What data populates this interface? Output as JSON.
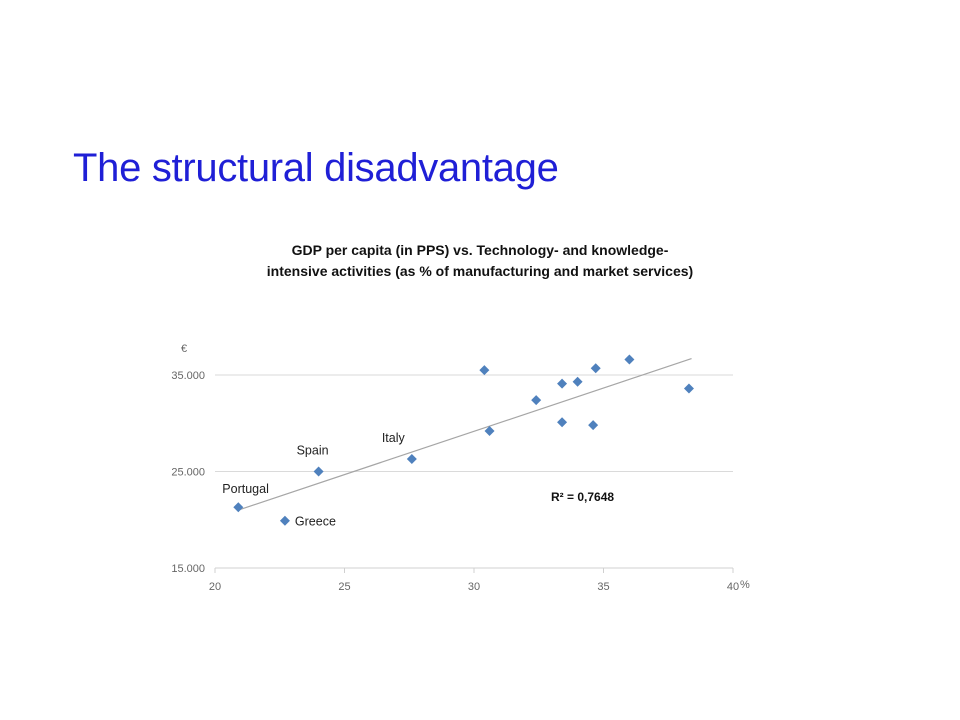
{
  "slide": {
    "title": "The structural disadvantage"
  },
  "chart_data": {
    "type": "scatter",
    "title": "GDP per capita (in PPS) vs. Technology- and knowledge-intensive activities (as % of manufacturing and market services)",
    "title_lines": [
      "GDP per capita (in PPS) vs. Technology- and knowledge-",
      "intensive activities (as % of manufacturing and market services)"
    ],
    "xlabel": "%",
    "ylabel": "€",
    "xlim": [
      20,
      40
    ],
    "ylim": [
      15000,
      37000
    ],
    "x_ticks": [
      20,
      25,
      30,
      35,
      40
    ],
    "x_tick_labels": [
      "20",
      "25",
      "30",
      "35",
      "40"
    ],
    "y_ticks": [
      15000,
      25000,
      35000
    ],
    "y_tick_labels": [
      "15.000",
      "25.000",
      "35.000"
    ],
    "grid": "horizontal",
    "marker_color": "#4f81bd",
    "trendline_color": "#a6a6a6",
    "r_squared_label": "R² = 0,7648",
    "trendline": {
      "x": [
        20.9,
        38.4
      ],
      "y": [
        21000,
        36700
      ]
    },
    "points": [
      {
        "x": 20.9,
        "y": 21300,
        "label": "Portugal"
      },
      {
        "x": 22.7,
        "y": 19900,
        "label": "Greece"
      },
      {
        "x": 24.0,
        "y": 25000,
        "label": "Spain"
      },
      {
        "x": 27.6,
        "y": 26300,
        "label": "Italy"
      },
      {
        "x": 30.4,
        "y": 35500,
        "label": ""
      },
      {
        "x": 30.6,
        "y": 29200,
        "label": ""
      },
      {
        "x": 32.4,
        "y": 32400,
        "label": ""
      },
      {
        "x": 33.4,
        "y": 34100,
        "label": ""
      },
      {
        "x": 33.4,
        "y": 30100,
        "label": ""
      },
      {
        "x": 34.0,
        "y": 34300,
        "label": ""
      },
      {
        "x": 34.6,
        "y": 29800,
        "label": ""
      },
      {
        "x": 34.7,
        "y": 35700,
        "label": ""
      },
      {
        "x": 36.0,
        "y": 36600,
        "label": ""
      },
      {
        "x": 38.3,
        "y": 33600,
        "label": ""
      }
    ]
  }
}
